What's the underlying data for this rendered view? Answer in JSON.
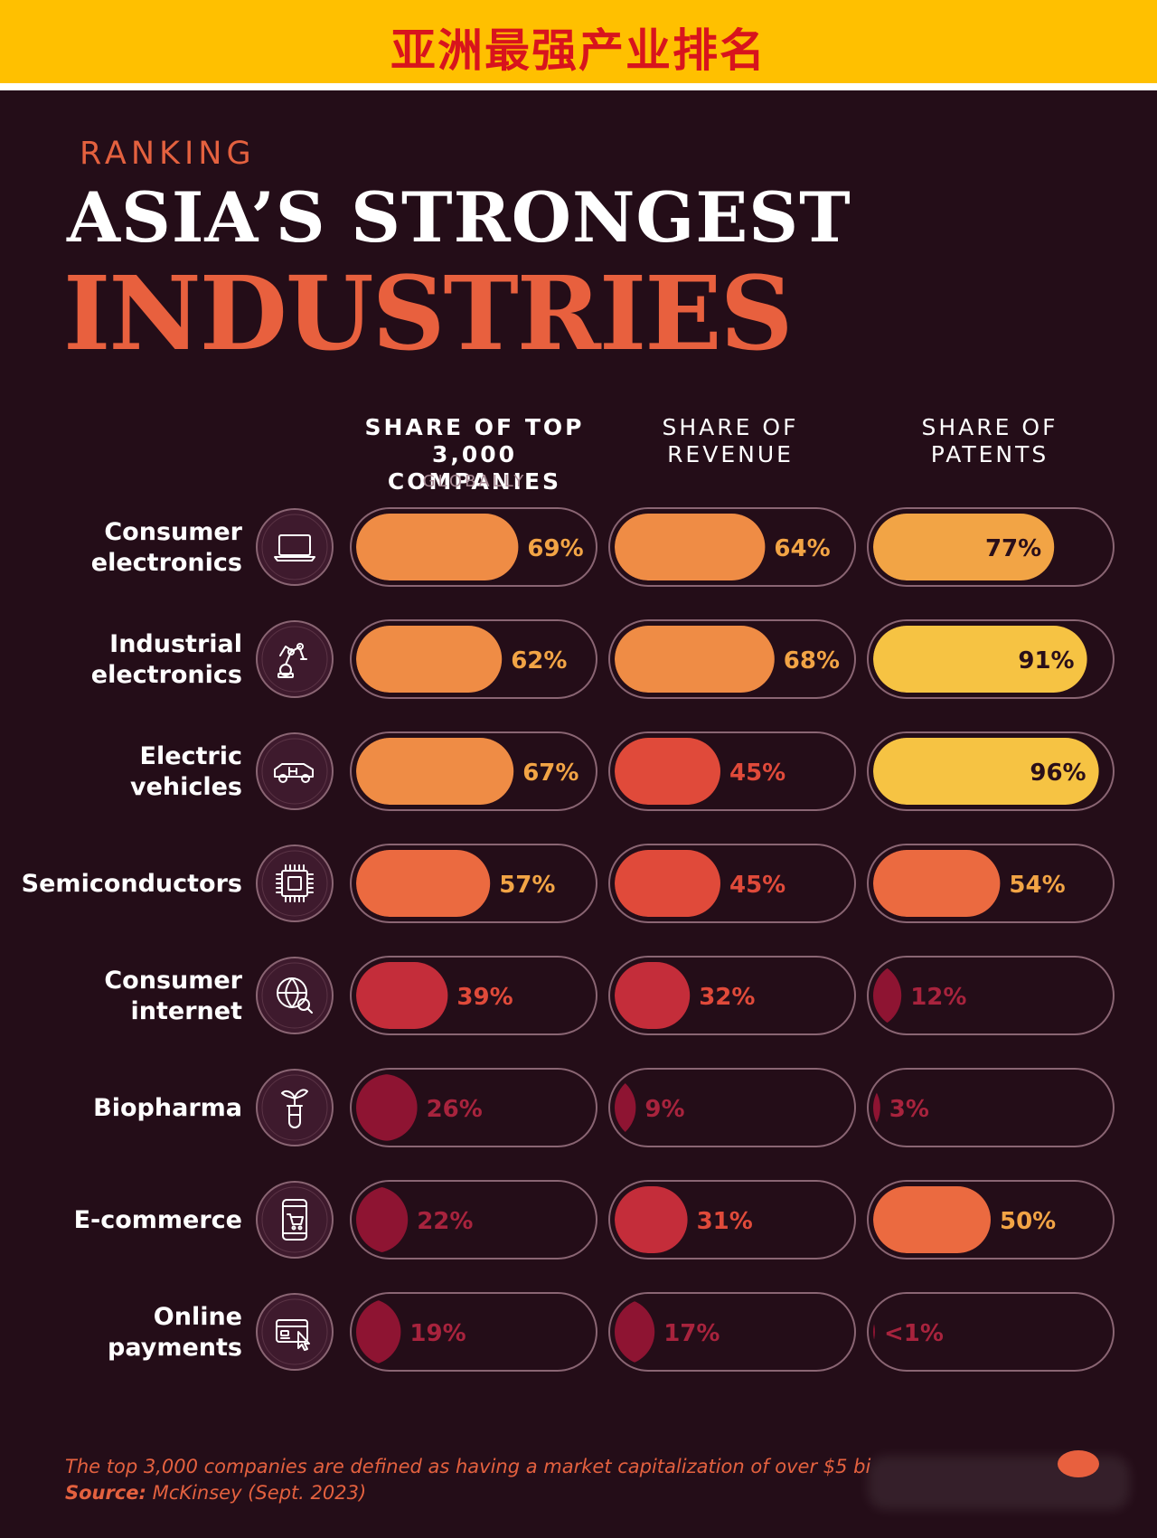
{
  "banner": {
    "text": "亚洲最强产业排名"
  },
  "header": {
    "kicker": "RANKING",
    "title_line1": "ASIA’S STRONGEST",
    "title_line2": "INDUSTRIES"
  },
  "columns": [
    {
      "line1": "SHARE OF TOP",
      "line2": "3,000 COMPANIES",
      "sub": "GLOBALLY"
    },
    {
      "line1": "SHARE OF",
      "line2": "REVENUE"
    },
    {
      "line1": "SHARE OF",
      "line2": "PATENTS"
    }
  ],
  "chart_data": {
    "type": "bar",
    "categories": [
      [
        "Consumer",
        "electronics"
      ],
      [
        "Industrial",
        "electronics"
      ],
      [
        "Electric",
        "vehicles"
      ],
      [
        "Semiconductors"
      ],
      [
        "Consumer",
        "internet"
      ],
      [
        "Biopharma"
      ],
      [
        "E-commerce"
      ],
      [
        "Online",
        "payments"
      ]
    ],
    "icons": [
      "laptop-icon",
      "robot-arm-icon",
      "electric-car-icon",
      "chip-icon",
      "globe-search-icon",
      "plant-flask-icon",
      "mobile-cart-icon",
      "card-cursor-icon"
    ],
    "series": [
      {
        "name": "SHARE OF TOP 3,000 COMPANIES GLOBALLY",
        "values": [
          69,
          62,
          67,
          57,
          39,
          26,
          22,
          19
        ],
        "labels": [
          "69%",
          "62%",
          "67%",
          "57%",
          "39%",
          "26%",
          "22%",
          "19%"
        ]
      },
      {
        "name": "SHARE OF REVENUE",
        "values": [
          64,
          68,
          45,
          45,
          32,
          9,
          31,
          17
        ],
        "labels": [
          "64%",
          "68%",
          "45%",
          "45%",
          "32%",
          "9%",
          "31%",
          "17%"
        ]
      },
      {
        "name": "SHARE OF PATENTS",
        "values": [
          77,
          91,
          96,
          54,
          12,
          3,
          50,
          0.5
        ],
        "labels": [
          "77%",
          "91%",
          "96%",
          "54%",
          "12%",
          "3%",
          "50%",
          "<1%"
        ]
      }
    ],
    "ylim": [
      0,
      100
    ],
    "colors": {
      "band_90": "#f6c343",
      "band_70": "#f2a445",
      "band_60": "#ef8c45",
      "band_50": "#eb6a40",
      "band_40": "#e04a3a",
      "band_30": "#c42d3a",
      "band_0": "#8e1432",
      "pill_outline": "#8a6573",
      "background": "#240d18"
    }
  },
  "footnote": {
    "text": "The top 3,000 companies are defined as having a market capitalization of over $5 bi",
    "source_label": "Source:",
    "source_text": " McKinsey (Sept. 2023)"
  }
}
